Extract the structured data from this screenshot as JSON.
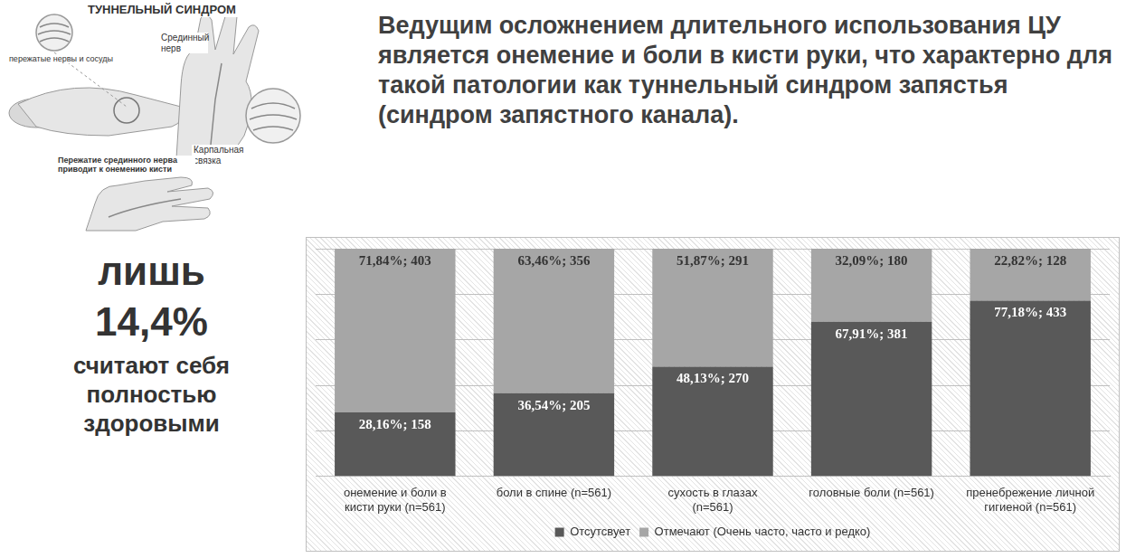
{
  "illustration": {
    "title": "ТУННЕЛЬНЫЙ СИНДРОМ",
    "labels": [
      "пережатые нервы и сосуды",
      "Срединный нерв",
      "Карпальная связка",
      "Пережатие срединного нерва приводит к онемению кисти"
    ]
  },
  "statement": "Ведущим осложнением длительного использования ЦУ является онемение и боли в кисти руки, что  характерно для такой патологии как туннельный синдром запястья (синдром запястного канала).",
  "side_note": {
    "lines": [
      "лишь",
      "14,4%",
      "считают себя полностью здоровыми"
    ]
  },
  "chart_data": {
    "type": "bar",
    "stacked": true,
    "data_labels": true,
    "grid": true,
    "tick_labels": "x",
    "legend": "bottom",
    "categories": [
      "онемение и боли в кисти руки (n=561)",
      "боли в спине (n=561)",
      "сухость в глазах (n=561)",
      "головные боли (n=561)",
      "пренебрежение личной гигиеной (n=561)"
    ],
    "series": [
      {
        "name": "Отсутсвует",
        "color": "#595959",
        "values": [
          28.16,
          36.54,
          48.13,
          67.91,
          77.18
        ],
        "value_labels": [
          "28,16%; 158",
          "36,54%; 205",
          "48,13%; 270",
          "67,91%; 381",
          "77,18%; 433"
        ]
      },
      {
        "name": "Отмечают (Очень часто, часто и редко)",
        "color": "#a6a6a6",
        "values": [
          71.84,
          63.46,
          51.87,
          32.09,
          22.82
        ],
        "value_labels": [
          "71,84%; 403",
          "63,46%; 356",
          "51,87%; 291",
          "32,09%; 180",
          "22,82%; 128"
        ]
      }
    ],
    "ylim": [
      0,
      100
    ],
    "yticks": [
      0,
      20,
      40,
      60,
      80,
      100
    ]
  }
}
